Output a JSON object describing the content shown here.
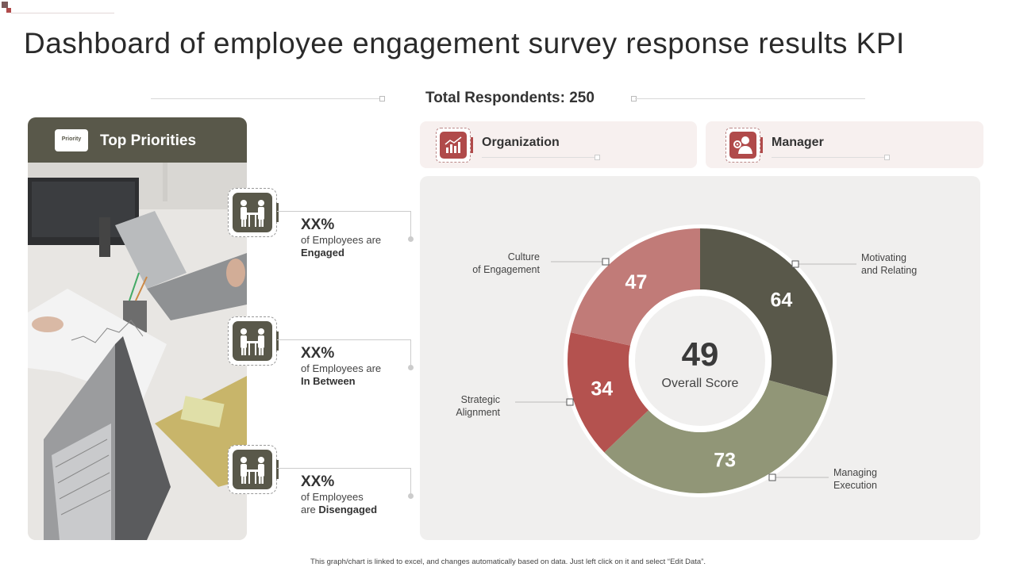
{
  "page": {
    "title": "Dashboard of employee engagement survey response results KPI",
    "respondents_label": "Total Respondents: 250",
    "footer": "This graph/chart is linked to excel, and changes automatically based on data. Just left click on it and select “Edit Data”."
  },
  "left_panel": {
    "header_title": "Top Priorities",
    "badge_text": "Priority",
    "items": [
      {
        "pct": "XX%",
        "line1": "of Employees are",
        "line2_prefix": "",
        "line2_bold": "Engaged",
        "icon": "people-table-icon"
      },
      {
        "pct": "XX%",
        "line1": "of Employees are",
        "line2_prefix": "",
        "line2_bold": "In Between",
        "icon": "people-table-icon"
      },
      {
        "pct": "XX%",
        "line1": "of Employees",
        "line2_prefix": "are ",
        "line2_bold": "Disengaged",
        "icon": "people-table-icon"
      }
    ]
  },
  "cards": [
    {
      "label": "Organization",
      "icon": "bar-chart-icon"
    },
    {
      "label": "Manager",
      "icon": "manager-gear-icon"
    }
  ],
  "colors": {
    "dark_olive": "#59584a",
    "olive_light": "#919677",
    "rose": "#c17b78",
    "red": "#b4524f",
    "accent_red": "#b04a4a"
  },
  "chart_data": {
    "type": "pie",
    "variant": "donut",
    "center_value": "49",
    "center_label": "Overall Score",
    "segments": [
      {
        "label": "Motivating and Relating",
        "label_lines": [
          "Motivating",
          "and Relating"
        ],
        "value": 64,
        "display": "64",
        "color": "#59584a"
      },
      {
        "label": "Managing Execution",
        "label_lines": [
          "Managing",
          "Execution"
        ],
        "value": 73,
        "display": "73",
        "color": "#919677"
      },
      {
        "label": "Strategic Alignment",
        "label_lines": [
          "Strategic",
          "Alignment"
        ],
        "value": 34,
        "display": "34",
        "color": "#b4524f"
      },
      {
        "label": "Culture of Engagement",
        "label_lines": [
          "Culture",
          "of Engagement"
        ],
        "value": 47,
        "display": "47",
        "color": "#c17b78"
      }
    ]
  }
}
